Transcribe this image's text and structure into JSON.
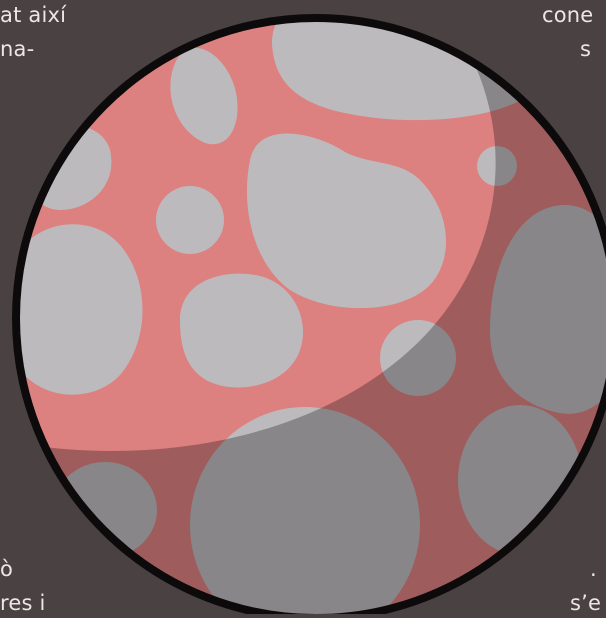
{
  "background_color": "#4a4143",
  "planet": {
    "surface_color": "#dd8080",
    "crater_color": "#bdbabd",
    "outline_color": "#0c0a0b",
    "shadow_color": "#000000"
  },
  "text_fragments": {
    "top_left_line1": "at així",
    "top_left_line2": "na-",
    "top_right_line1": "cone",
    "top_right_line2": "s",
    "bottom_left_line1": "ò",
    "bottom_left_line2": "res i",
    "bottom_right_line1": ".",
    "bottom_right_line2": "s’e"
  }
}
